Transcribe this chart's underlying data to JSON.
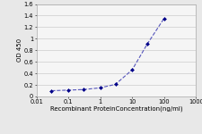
{
  "x": [
    0.03,
    0.1,
    0.3,
    1,
    3,
    10,
    30,
    100
  ],
  "y": [
    0.1,
    0.11,
    0.12,
    0.15,
    0.21,
    0.46,
    0.91,
    1.35
  ],
  "line_color": "#5555bb",
  "marker_color": "#000088",
  "marker_style": "D",
  "marker_size": 2.0,
  "line_width": 0.8,
  "line_style": "--",
  "xlabel": "Recombinant ProteinConcentration(ng/ml)",
  "ylabel": "OD 450",
  "xlim": [
    0.01,
    1000
  ],
  "ylim": [
    0,
    1.6
  ],
  "yticks": [
    0,
    0.2,
    0.4,
    0.6,
    0.8,
    1.0,
    1.2,
    1.4,
    1.6
  ],
  "ytick_labels": [
    "0",
    "0.2",
    "0.4",
    "0.6",
    "0.8",
    "1",
    "1.2",
    "1.4",
    "1.6"
  ],
  "xtick_labels": [
    "0.01",
    "0.1",
    "1",
    "10",
    "100",
    "1000"
  ],
  "xtick_vals": [
    0.01,
    0.1,
    1,
    10,
    100,
    1000
  ],
  "xlabel_fontsize": 5.0,
  "ylabel_fontsize": 5.0,
  "tick_fontsize": 4.8,
  "background_color": "#e8e8e8",
  "plot_bg_color": "#f5f5f5",
  "grid_color": "#cccccc"
}
